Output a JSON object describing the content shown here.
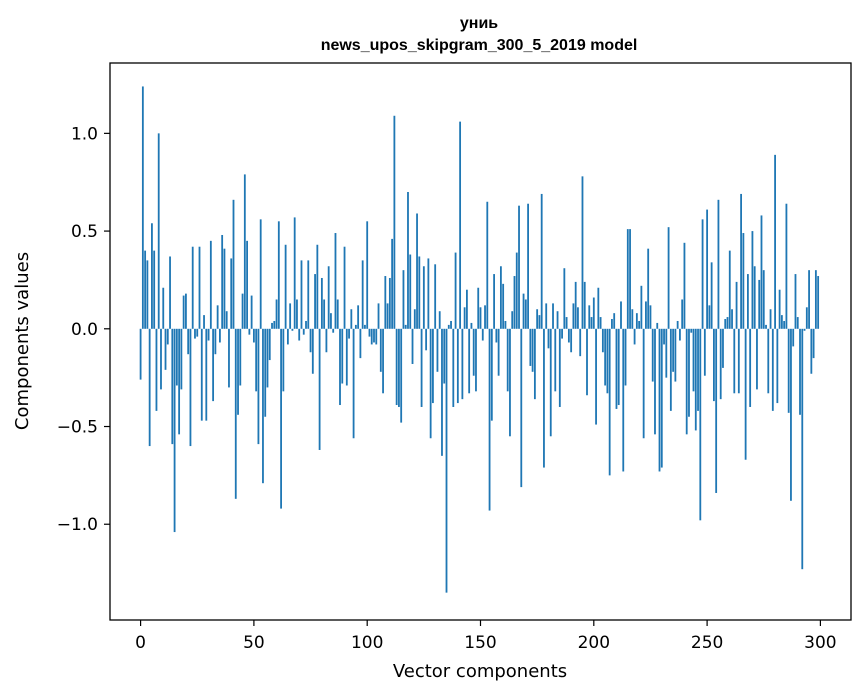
{
  "chart_data": {
    "type": "bar",
    "title": "униь",
    "subtitle": "news_upos_skipgram_300_5_2019 model",
    "xlabel": "Vector components",
    "ylabel": "Components values",
    "xlim": [
      -13.5,
      313.5
    ],
    "ylim": [
      -1.49,
      1.36
    ],
    "grid": false,
    "bar_color": "#1f77b4",
    "xticks": [
      0,
      50,
      100,
      150,
      200,
      250,
      300
    ],
    "xtick_labels": [
      "0",
      "50",
      "100",
      "150",
      "200",
      "250",
      "300"
    ],
    "yticks": [
      -1.0,
      -0.5,
      0.0,
      0.5,
      1.0
    ],
    "ytick_labels": [
      "−1.0",
      "−0.5",
      "0.0",
      "0.5",
      "1.0"
    ],
    "values": [
      -0.26,
      1.24,
      0.4,
      0.35,
      -0.6,
      0.54,
      0.4,
      -0.42,
      1.0,
      -0.31,
      0.21,
      -0.21,
      -0.08,
      0.37,
      -0.59,
      -1.04,
      -0.29,
      -0.54,
      -0.31,
      0.17,
      0.18,
      -0.13,
      -0.6,
      0.42,
      -0.05,
      -0.04,
      0.42,
      -0.47,
      0.07,
      -0.47,
      -0.06,
      0.45,
      -0.37,
      -0.13,
      0.12,
      -0.07,
      0.48,
      0.41,
      0.09,
      -0.3,
      0.36,
      0.66,
      -0.87,
      -0.44,
      -0.29,
      0.18,
      0.79,
      0.45,
      -0.03,
      0.17,
      -0.07,
      -0.32,
      -0.59,
      0.56,
      -0.79,
      -0.45,
      -0.3,
      -0.16,
      0.03,
      0.04,
      0.15,
      0.55,
      -0.92,
      -0.32,
      0.43,
      -0.08,
      0.13,
      -0.01,
      0.57,
      0.15,
      -0.06,
      0.35,
      -0.03,
      0.04,
      0.35,
      -0.12,
      -0.23,
      0.28,
      0.43,
      -0.62,
      0.26,
      0.15,
      -0.12,
      0.32,
      0.08,
      -0.02,
      0.49,
      0.15,
      -0.39,
      -0.28,
      0.42,
      -0.29,
      -0.05,
      0.1,
      -0.56,
      0.02,
      0.12,
      -0.15,
      0.35,
      0.02,
      0.55,
      -0.04,
      -0.08,
      -0.07,
      -0.08,
      0.13,
      -0.22,
      -0.33,
      0.27,
      0.13,
      0.26,
      0.46,
      1.09,
      -0.39,
      -0.4,
      -0.48,
      0.3,
      0.02,
      0.7,
      0.38,
      -0.18,
      0.1,
      0.59,
      0.37,
      -0.4,
      0.32,
      -0.11,
      0.36,
      -0.56,
      -0.38,
      0.33,
      -0.22,
      0.09,
      -0.65,
      -0.28,
      -1.35,
      0.02,
      0.04,
      -0.4,
      0.39,
      -0.38,
      1.06,
      -0.36,
      0.11,
      0.2,
      -0.33,
      0.03,
      -0.24,
      -0.32,
      0.21,
      0.11,
      -0.06,
      0.12,
      0.65,
      -0.93,
      -0.47,
      0.28,
      -0.07,
      -0.24,
      0.32,
      0.23,
      0.04,
      -0.32,
      -0.55,
      0.09,
      0.27,
      0.39,
      0.63,
      -0.81,
      0.18,
      0.15,
      0.64,
      -0.19,
      -0.22,
      -0.36,
      0.1,
      0.07,
      0.69,
      -0.71,
      0.13,
      -0.1,
      -0.55,
      0.13,
      -0.32,
      0.09,
      -0.4,
      -0.05,
      0.31,
      0.06,
      -0.07,
      -0.12,
      0.13,
      0.24,
      0.11,
      -0.14,
      0.78,
      0.24,
      -0.34,
      0.12,
      0.06,
      0.16,
      -0.49,
      0.21,
      0.06,
      -0.12,
      -0.29,
      -0.33,
      -0.75,
      0.05,
      0.08,
      -0.41,
      -0.39,
      0.14,
      -0.73,
      -0.29,
      0.51,
      0.51,
      0.1,
      -0.08,
      0.08,
      0.04,
      0.22,
      -0.56,
      0.14,
      0.41,
      0.12,
      -0.27,
      -0.54,
      0.03,
      -0.73,
      -0.71,
      -0.08,
      -0.25,
      0.52,
      -0.42,
      -0.22,
      -0.27,
      0.04,
      -0.06,
      0.15,
      0.44,
      -0.54,
      -0.45,
      -0.02,
      -0.32,
      -0.52,
      -0.42,
      -0.98,
      0.56,
      -0.24,
      0.61,
      0.12,
      0.34,
      -0.37,
      -0.84,
      0.66,
      -0.36,
      -0.2,
      0.05,
      0.06,
      0.4,
      0.1,
      -0.33,
      0.24,
      -0.33,
      0.69,
      0.49,
      -0.67,
      0.28,
      -0.4,
      0.5,
      0.32,
      -0.31,
      0.25,
      0.58,
      0.3,
      0.02,
      -0.33,
      0.1,
      -0.42,
      0.89,
      -0.38,
      0.2,
      0.07,
      0.04,
      0.64,
      -0.43,
      -0.88,
      -0.09,
      0.28,
      0.06,
      -0.44,
      -1.23,
      -0.01,
      0.11,
      0.3,
      -0.23,
      -0.15,
      0.3,
      0.27
    ]
  }
}
